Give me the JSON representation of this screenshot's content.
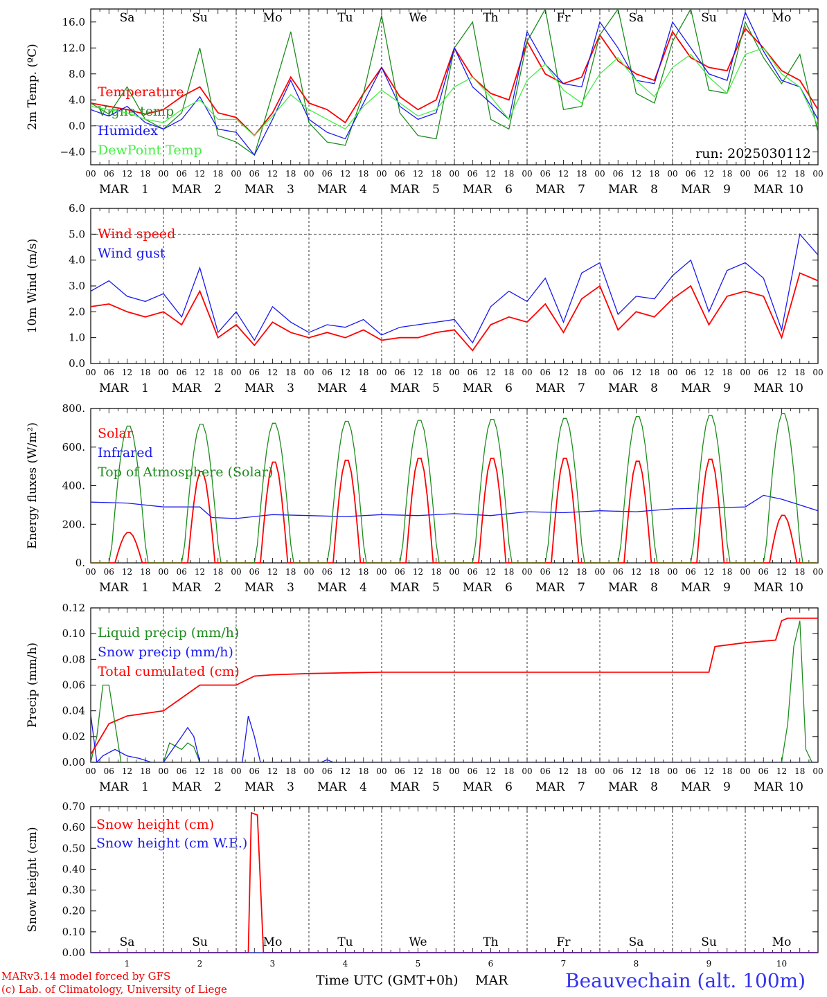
{
  "colors": {
    "red": "#ff0000",
    "blue": "#1a1aee",
    "darkgreen": "#1e8c1e",
    "lightgreen": "#44ee44",
    "weekend": "#ff2222",
    "station": "#3333ee"
  },
  "days": {
    "weekday": [
      "Sa",
      "Su",
      "Mo",
      "Tu",
      "We",
      "Th",
      "Fr",
      "Sa",
      "Su",
      "Mo"
    ],
    "weekend": [
      true,
      true,
      false,
      false,
      false,
      false,
      false,
      true,
      true,
      false
    ],
    "month": "MAR",
    "numbers": [
      "1",
      "2",
      "3",
      "4",
      "5",
      "6",
      "7",
      "8",
      "9",
      "10"
    ],
    "hour_labels": [
      "00",
      "06",
      "12",
      "18"
    ]
  },
  "chart_data": [
    {
      "id": "temp",
      "type": "line",
      "ylabel": "2m Temp. (ºC)",
      "ylim": [
        -6,
        18
      ],
      "yticks": [
        -4,
        0,
        4,
        8,
        12,
        16
      ],
      "ytick_labels": [
        "−4.0",
        "0.0",
        "4.0",
        "8.0",
        "12.0",
        "16.0"
      ],
      "dashed_ref": 0,
      "annotation": "run: 2025030112",
      "x_unit": "hours since 1 MAR 00 UTC",
      "series": [
        {
          "name": "Temperature",
          "color": "red",
          "x": [
            0,
            6,
            12,
            18,
            24,
            30,
            36,
            42,
            48,
            54,
            60,
            66,
            72,
            78,
            84,
            90,
            96,
            102,
            108,
            114,
            120,
            126,
            132,
            138,
            144,
            150,
            156,
            162,
            168,
            174,
            180,
            186,
            192,
            198,
            204,
            210,
            216,
            222,
            228,
            234,
            240
          ],
          "values": [
            3.5,
            3.0,
            2.5,
            1.8,
            2.5,
            4.5,
            6.0,
            2.0,
            1.3,
            -1.5,
            2.0,
            7.5,
            3.5,
            2.5,
            0.5,
            5.0,
            9.0,
            4.5,
            2.5,
            4.0,
            12.0,
            7.5,
            5.0,
            4.0,
            13.0,
            8.0,
            6.5,
            7.5,
            14.0,
            10.0,
            8.0,
            7.0,
            14.5,
            10.5,
            9.0,
            8.5,
            15.0,
            12.0,
            8.5,
            7.0,
            2.5
          ]
        },
        {
          "name": "Vigne temp",
          "color": "darkgreen",
          "x": [
            0,
            6,
            12,
            18,
            24,
            30,
            36,
            42,
            48,
            54,
            60,
            66,
            72,
            78,
            84,
            90,
            96,
            102,
            108,
            114,
            120,
            126,
            132,
            138,
            144,
            150,
            156,
            162,
            168,
            174,
            180,
            186,
            192,
            198,
            204,
            210,
            216,
            222,
            228,
            234,
            240
          ],
          "values": [
            3.5,
            1.8,
            6.0,
            1.0,
            -0.5,
            2.0,
            12.0,
            -1.5,
            -2.5,
            -4.5,
            5.0,
            14.5,
            0.5,
            -2.5,
            -3.0,
            5.0,
            17.0,
            2.0,
            -1.5,
            -2.0,
            12.0,
            16.0,
            1.0,
            -0.5,
            13.0,
            18.0,
            2.5,
            3.0,
            14.0,
            18.0,
            5.0,
            3.5,
            13.0,
            18.0,
            5.5,
            5.0,
            16.0,
            10.5,
            6.5,
            11.0,
            -1.0
          ]
        },
        {
          "name": "Humidex",
          "color": "blue",
          "x": [
            0,
            6,
            12,
            18,
            24,
            30,
            36,
            42,
            48,
            54,
            60,
            66,
            72,
            78,
            84,
            90,
            96,
            102,
            108,
            114,
            120,
            126,
            132,
            138,
            144,
            150,
            156,
            162,
            168,
            174,
            180,
            186,
            192,
            198,
            204,
            210,
            216,
            222,
            228,
            234,
            240
          ],
          "values": [
            2.5,
            1.5,
            3.0,
            0.5,
            -0.5,
            1.0,
            4.5,
            -0.5,
            -1.0,
            -4.5,
            1.0,
            7.0,
            1.0,
            -1.0,
            -2.0,
            3.5,
            9.0,
            3.0,
            1.0,
            2.0,
            12.0,
            6.0,
            3.5,
            1.0,
            14.5,
            9.5,
            6.5,
            6.0,
            16.0,
            12.0,
            7.0,
            6.5,
            16.0,
            12.0,
            8.0,
            7.0,
            17.5,
            11.5,
            7.0,
            6.0,
            1.0
          ]
        },
        {
          "name": "DewPoint Temp",
          "color": "lightgreen",
          "x": [
            0,
            6,
            12,
            18,
            24,
            30,
            36,
            42,
            48,
            54,
            60,
            66,
            72,
            78,
            84,
            90,
            96,
            102,
            108,
            114,
            120,
            126,
            132,
            138,
            144,
            150,
            156,
            162,
            168,
            174,
            180,
            186,
            192,
            198,
            204,
            210,
            216,
            222,
            228,
            234,
            240
          ],
          "values": [
            3.0,
            2.5,
            2.0,
            1.0,
            0.5,
            2.5,
            4.0,
            1.0,
            1.0,
            -1.5,
            1.5,
            4.8,
            2.5,
            1.0,
            -0.5,
            3.0,
            5.5,
            3.5,
            1.5,
            2.5,
            6.0,
            7.5,
            4.5,
            1.0,
            7.0,
            9.5,
            5.5,
            3.5,
            8.0,
            10.5,
            7.0,
            4.5,
            9.0,
            11.0,
            7.5,
            5.0,
            11.0,
            12.0,
            8.0,
            6.0,
            0.0
          ]
        }
      ]
    },
    {
      "id": "wind",
      "type": "line",
      "ylabel": "10m Wind (m/s)",
      "ylim": [
        0,
        6
      ],
      "yticks": [
        0,
        1,
        2,
        3,
        4,
        5,
        6
      ],
      "ytick_labels": [
        "0.0",
        "1.0",
        "2.0",
        "3.0",
        "4.0",
        "5.0",
        "6.0"
      ],
      "dashed_ref": 5,
      "x_unit": "hours since 1 MAR 00 UTC",
      "series": [
        {
          "name": "Wind speed",
          "color": "red",
          "x": [
            0,
            6,
            12,
            18,
            24,
            30,
            36,
            42,
            48,
            54,
            60,
            66,
            72,
            78,
            84,
            90,
            96,
            102,
            108,
            114,
            120,
            126,
            132,
            138,
            144,
            150,
            156,
            162,
            168,
            174,
            180,
            186,
            192,
            198,
            204,
            210,
            216,
            222,
            228,
            234,
            240
          ],
          "values": [
            2.2,
            2.3,
            2.0,
            1.8,
            2.0,
            1.5,
            2.8,
            1.0,
            1.5,
            0.7,
            1.6,
            1.2,
            1.0,
            1.2,
            1.0,
            1.3,
            0.9,
            1.0,
            1.0,
            1.2,
            1.3,
            0.5,
            1.5,
            1.8,
            1.6,
            2.3,
            1.2,
            2.5,
            3.0,
            1.3,
            2.0,
            1.8,
            2.5,
            3.0,
            1.5,
            2.6,
            2.8,
            2.6,
            1.0,
            3.5,
            3.2
          ]
        },
        {
          "name": "Wind gust",
          "color": "blue",
          "x": [
            0,
            6,
            12,
            18,
            24,
            30,
            36,
            42,
            48,
            54,
            60,
            66,
            72,
            78,
            84,
            90,
            96,
            102,
            108,
            114,
            120,
            126,
            132,
            138,
            144,
            150,
            156,
            162,
            168,
            174,
            180,
            186,
            192,
            198,
            204,
            210,
            216,
            222,
            228,
            234,
            240
          ],
          "values": [
            2.8,
            3.2,
            2.6,
            2.4,
            2.7,
            1.8,
            3.7,
            1.2,
            2.0,
            0.9,
            2.2,
            1.6,
            1.2,
            1.5,
            1.4,
            1.7,
            1.1,
            1.4,
            1.5,
            1.6,
            1.7,
            0.8,
            2.2,
            2.8,
            2.4,
            3.3,
            1.6,
            3.5,
            3.9,
            1.9,
            2.6,
            2.5,
            3.4,
            4.0,
            2.0,
            3.6,
            3.9,
            3.3,
            1.3,
            5.0,
            4.2
          ]
        }
      ]
    },
    {
      "id": "flux",
      "type": "line",
      "ylabel": "Energy fluxes (W/m²)",
      "ylim": [
        0,
        800
      ],
      "yticks": [
        0,
        200,
        400,
        600,
        800
      ],
      "ytick_labels": [
        "0.",
        "200.",
        "400.",
        "600.",
        "800."
      ],
      "x_unit": "hours since 1 MAR 00 UTC",
      "series": [
        {
          "name": "Solar",
          "color": "red",
          "diurnal_peak": [
            160,
            480,
            530,
            540,
            550,
            550,
            550,
            535,
            545,
            250
          ]
        },
        {
          "name": "Infrared",
          "color": "blue",
          "x": [
            0,
            12,
            24,
            36,
            40,
            48,
            60,
            72,
            84,
            96,
            108,
            120,
            132,
            144,
            156,
            168,
            180,
            192,
            204,
            216,
            222,
            228,
            240
          ],
          "values": [
            315,
            310,
            290,
            290,
            235,
            230,
            250,
            245,
            240,
            250,
            245,
            255,
            245,
            265,
            260,
            270,
            265,
            280,
            285,
            290,
            350,
            330,
            270
          ]
        },
        {
          "name": "Top of Atmosphere (Solar)",
          "color": "darkgreen",
          "diurnal_peak": [
            715,
            725,
            730,
            740,
            745,
            750,
            755,
            765,
            770,
            780
          ]
        }
      ]
    },
    {
      "id": "precip",
      "type": "line",
      "ylabel": "Precip (mm/h)",
      "ylim": [
        0,
        0.12
      ],
      "yticks": [
        0,
        0.02,
        0.04,
        0.06,
        0.08,
        0.1,
        0.12
      ],
      "ytick_labels": [
        "0.00",
        "0.02",
        "0.04",
        "0.06",
        "0.08",
        "0.10",
        "0.12"
      ],
      "x_unit": "hours since 1 MAR 00 UTC",
      "series": [
        {
          "name": "Liquid precip (mm/h)",
          "color": "darkgreen",
          "x": [
            0,
            2,
            4,
            6,
            8,
            10,
            12,
            24,
            26,
            30,
            32,
            34,
            36,
            40,
            48,
            228,
            230,
            232,
            234,
            236,
            238,
            240
          ],
          "values": [
            0,
            0.02,
            0.06,
            0.06,
            0.03,
            0,
            0,
            0,
            0.015,
            0.01,
            0.015,
            0.012,
            0,
            0,
            0,
            0,
            0.03,
            0.09,
            0.11,
            0.01,
            0,
            0
          ]
        },
        {
          "name": "Snow precip (mm/h)",
          "color": "blue",
          "x": [
            0,
            2,
            4,
            8,
            12,
            16,
            20,
            24,
            30,
            32,
            34,
            36,
            48,
            50,
            52,
            54,
            56,
            60,
            76,
            78,
            80,
            240
          ],
          "values": [
            0.037,
            0,
            0.005,
            0.01,
            0.005,
            0.003,
            0,
            0,
            0.02,
            0.027,
            0.02,
            0,
            0,
            0,
            0.036,
            0.02,
            0,
            0,
            0,
            0.002,
            0,
            0
          ]
        },
        {
          "name": "Total cumulated (cm)",
          "color": "red",
          "x": [
            0,
            6,
            12,
            24,
            30,
            36,
            48,
            54,
            60,
            72,
            96,
            144,
            192,
            204,
            206,
            216,
            226,
            228,
            230,
            234,
            240
          ],
          "values": [
            0.006,
            0.03,
            0.036,
            0.04,
            0.05,
            0.06,
            0.06,
            0.067,
            0.068,
            0.069,
            0.07,
            0.07,
            0.07,
            0.07,
            0.09,
            0.093,
            0.095,
            0.11,
            0.112,
            0.112,
            0.112
          ]
        }
      ]
    },
    {
      "id": "snow",
      "type": "line",
      "ylabel": "Snow height (cm)",
      "ylim": [
        0,
        0.7
      ],
      "yticks": [
        0,
        0.1,
        0.2,
        0.3,
        0.4,
        0.5,
        0.6,
        0.7
      ],
      "ytick_labels": [
        "0.00",
        "0.10",
        "0.20",
        "0.30",
        "0.40",
        "0.50",
        "0.60",
        "0.70"
      ],
      "x_unit": "hours since 1 MAR 00 UTC",
      "series": [
        {
          "name": "Snow height (cm)",
          "color": "red",
          "x": [
            0,
            52,
            53,
            55,
            57,
            240
          ],
          "values": [
            0,
            0,
            0.67,
            0.66,
            0,
            0
          ]
        },
        {
          "name": "Snow height (cm W.E.)",
          "color": "blue",
          "x": [
            0,
            240
          ],
          "values": [
            0,
            0
          ]
        }
      ]
    }
  ],
  "footer": {
    "model": "MARv3.14 model forced by GFS",
    "lab": "(c) Lab. of Climatology, University of Liege",
    "xaxis_title": "Time UTC (GMT+0h)",
    "month": "MAR",
    "station": "Beauvechain (alt. 100m)"
  }
}
